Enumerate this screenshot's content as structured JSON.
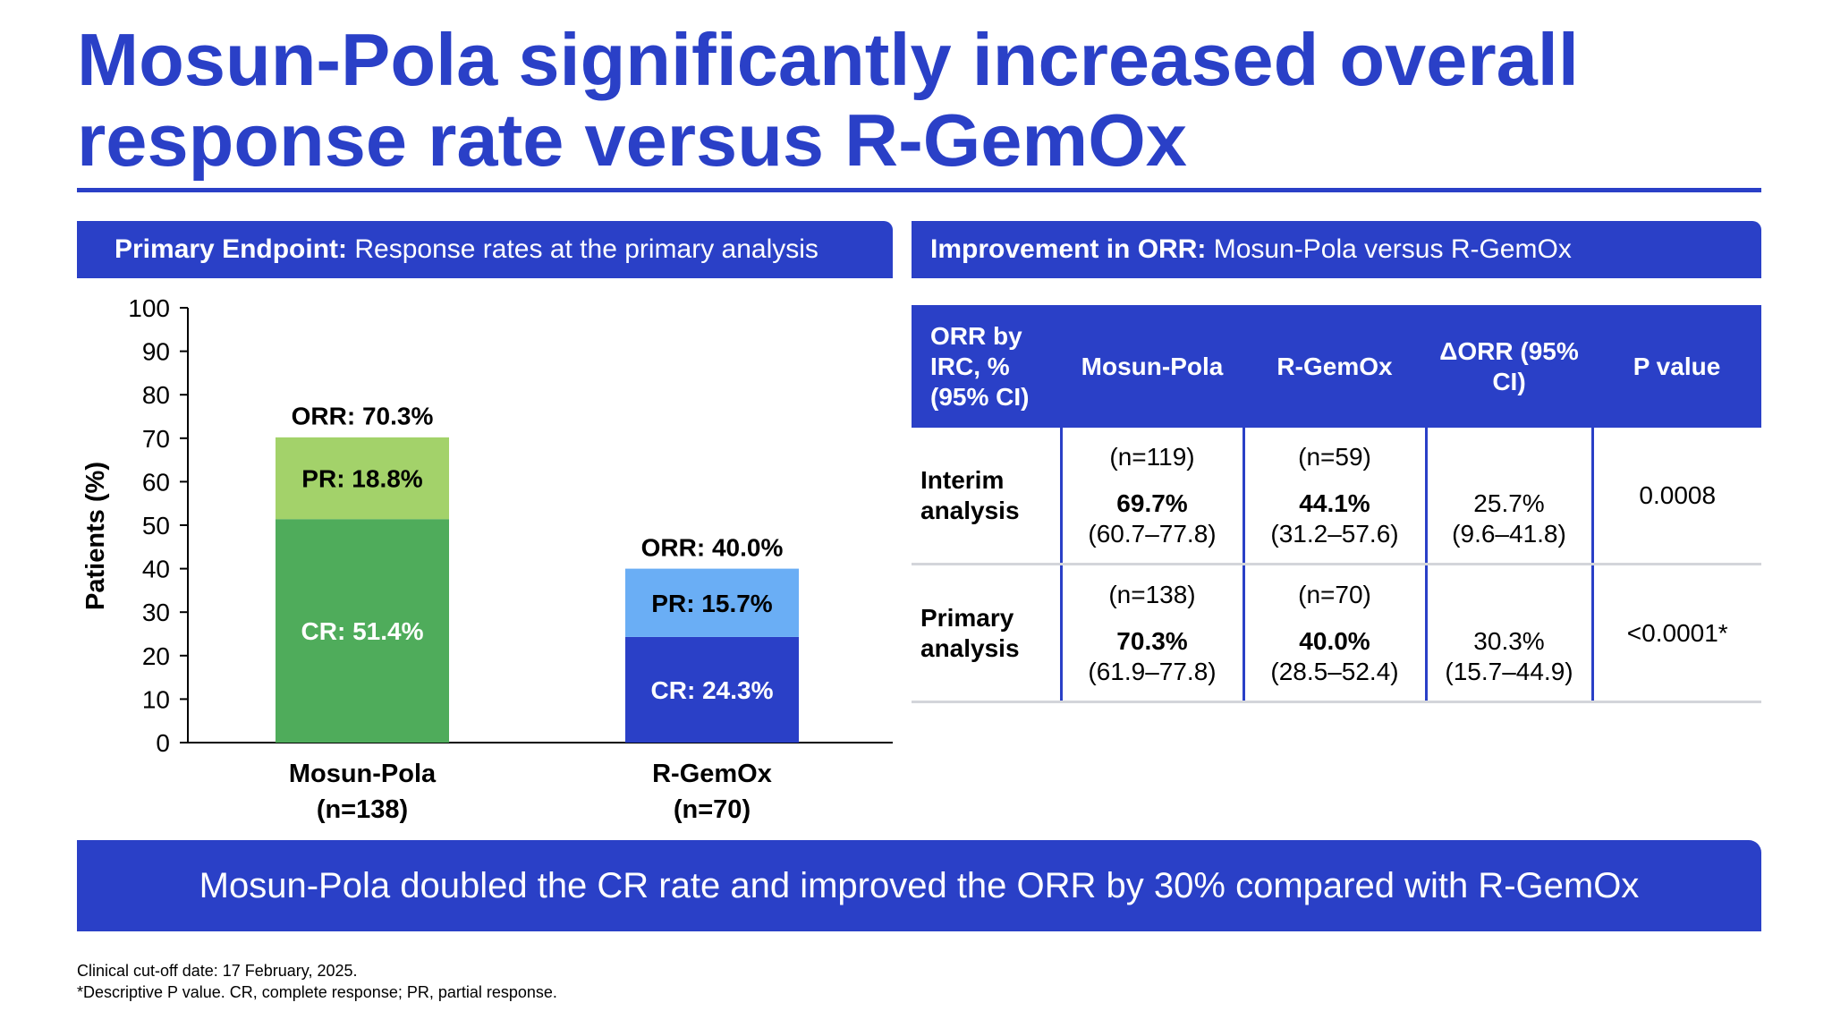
{
  "title": "Mosun-Pola significantly increased overall response rate versus R-GemOx",
  "left_panel": {
    "header_bold": "Primary Endpoint:",
    "header_text": " Response rates at the primary analysis"
  },
  "right_panel": {
    "header_bold": "Improvement in ORR:",
    "header_text": " Mosun-Pola versus R-GemOx"
  },
  "chart_data": {
    "type": "bar",
    "stacked": true,
    "ylabel": "Patients (%)",
    "xlabel": "",
    "ylim": [
      0,
      100
    ],
    "yticks": [
      0,
      10,
      20,
      30,
      40,
      50,
      60,
      70,
      80,
      90,
      100
    ],
    "categories": [
      {
        "name": "Mosun-Pola",
        "n": "(n=138)",
        "orr_label": "ORR: 70.3%",
        "orr": 70.3
      },
      {
        "name": "R-GemOx",
        "n": "(n=70)",
        "orr_label": "ORR: 40.0%",
        "orr": 40.0
      }
    ],
    "segments": [
      [
        {
          "kind": "CR",
          "value": 51.4,
          "label": "CR: 51.4%",
          "color": "#4fac5b",
          "text_color": "#ffffff"
        },
        {
          "kind": "PR",
          "value": 18.8,
          "label": "PR: 18.8%",
          "color": "#a3d26a",
          "text_color": "#000000"
        }
      ],
      [
        {
          "kind": "CR",
          "value": 24.3,
          "label": "CR: 24.3%",
          "color": "#2a40c7",
          "text_color": "#ffffff"
        },
        {
          "kind": "PR",
          "value": 15.7,
          "label": "PR: 15.7%",
          "color": "#6aaef5",
          "text_color": "#000000"
        }
      ]
    ],
    "grid": false,
    "legend": "none"
  },
  "table": {
    "headers": [
      "ORR by IRC, % (95% CI)",
      "Mosun-Pola",
      "R-GemOx",
      "ΔORR (95% CI)",
      "P value"
    ],
    "rows": [
      {
        "label": "Interim analysis",
        "mosun_n": "(n=119)",
        "mosun_pct": "69.7%",
        "mosun_ci": "(60.7–77.8)",
        "rgemox_n": "(n=59)",
        "rgemox_pct": "44.1%",
        "rgemox_ci": "(31.2–57.6)",
        "delta": "25.7%",
        "delta_ci": "(9.6–41.8)",
        "p": "0.0008"
      },
      {
        "label": "Primary analysis",
        "mosun_n": "(n=138)",
        "mosun_pct": "70.3%",
        "mosun_ci": "(61.9–77.8)",
        "rgemox_n": "(n=70)",
        "rgemox_pct": "40.0%",
        "rgemox_ci": "(28.5–52.4)",
        "delta": "30.3%",
        "delta_ci": "(15.7–44.9)",
        "p": "<0.0001*"
      }
    ]
  },
  "banner": "Mosun-Pola doubled the CR rate and improved the ORR by 30% compared with R-GemOx",
  "footnotes": [
    "Clinical cut-off date: 17 February, 2025.",
    "*Descriptive P value. CR, complete response; PR, partial response."
  ],
  "colors": {
    "brand_blue": "#2a40c7",
    "rule_grey": "#d3d5da"
  }
}
